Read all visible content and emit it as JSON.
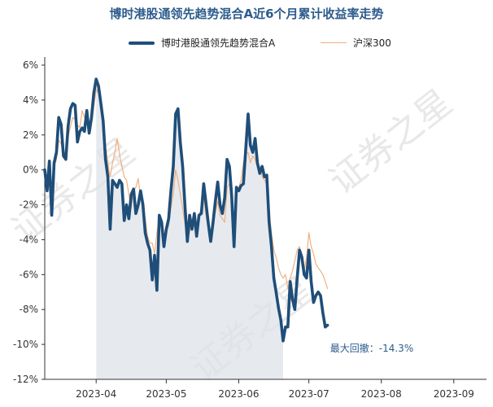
{
  "chart_data": {
    "type": "line",
    "title": "博时港股通领先趋势混合A近6个月累计收益率走势",
    "ylim": [
      -12,
      6
    ],
    "yticks": [
      "6%",
      "4%",
      "2%",
      "0%",
      "-2%",
      "-4%",
      "-6%",
      "-8%",
      "-10%",
      "-12%"
    ],
    "xlim": [
      "2023-03-10",
      "2023-09-15"
    ],
    "xticks": [
      {
        "date": "2023-04-01",
        "label": "2023-04"
      },
      {
        "date": "2023-05-01",
        "label": "2023-05"
      },
      {
        "date": "2023-06-01",
        "label": "2023-06"
      },
      {
        "date": "2023-07-01",
        "label": "2023-07"
      },
      {
        "date": "2023-08-01",
        "label": "2023-08"
      },
      {
        "date": "2023-09-01",
        "label": "2023-09"
      }
    ],
    "legend_position": "top-center",
    "grid": false,
    "watermark": "证券之星",
    "series": [
      {
        "name": "博时港股通领先趋势混合A",
        "color": "#1f4e79",
        "points": [
          [
            "2023-03-10",
            0.0
          ],
          [
            "2023-03-11",
            -1.2
          ],
          [
            "2023-03-12",
            0.5
          ],
          [
            "2023-03-13",
            -2.6
          ],
          [
            "2023-03-14",
            0.4
          ],
          [
            "2023-03-15",
            1.0
          ],
          [
            "2023-03-16",
            3.0
          ],
          [
            "2023-03-17",
            2.6
          ],
          [
            "2023-03-18",
            0.8
          ],
          [
            "2023-03-19",
            0.6
          ],
          [
            "2023-03-20",
            2.5
          ],
          [
            "2023-03-21",
            3.5
          ],
          [
            "2023-03-22",
            3.8
          ],
          [
            "2023-03-23",
            3.7
          ],
          [
            "2023-03-24",
            1.6
          ],
          [
            "2023-03-25",
            2.2
          ],
          [
            "2023-03-26",
            2.4
          ],
          [
            "2023-03-27",
            2.2
          ],
          [
            "2023-03-28",
            3.4
          ],
          [
            "2023-03-29",
            2.1
          ],
          [
            "2023-03-30",
            3.0
          ],
          [
            "2023-03-31",
            4.4
          ],
          [
            "2023-04-01",
            5.2
          ],
          [
            "2023-04-02",
            4.8
          ],
          [
            "2023-04-03",
            3.8
          ],
          [
            "2023-04-04",
            2.8
          ],
          [
            "2023-04-05",
            0.6
          ],
          [
            "2023-04-06",
            -0.4
          ],
          [
            "2023-04-07",
            -3.4
          ],
          [
            "2023-04-08",
            -0.6
          ],
          [
            "2023-04-09",
            -0.8
          ],
          [
            "2023-04-10",
            -1.0
          ],
          [
            "2023-04-11",
            -0.6
          ],
          [
            "2023-04-12",
            -0.8
          ],
          [
            "2023-04-13",
            -2.9
          ],
          [
            "2023-04-14",
            -2.0
          ],
          [
            "2023-04-15",
            -2.8
          ],
          [
            "2023-04-16",
            -1.4
          ],
          [
            "2023-04-17",
            -1.1
          ],
          [
            "2023-04-18",
            -2.5
          ],
          [
            "2023-04-19",
            -2.0
          ],
          [
            "2023-04-20",
            -1.2
          ],
          [
            "2023-04-21",
            -2.0
          ],
          [
            "2023-04-22",
            -3.6
          ],
          [
            "2023-04-23",
            -4.2
          ],
          [
            "2023-04-24",
            -4.6
          ],
          [
            "2023-04-25",
            -6.3
          ],
          [
            "2023-04-26",
            -4.9
          ],
          [
            "2023-04-27",
            -6.9
          ],
          [
            "2023-04-28",
            -2.6
          ],
          [
            "2023-04-29",
            -3.0
          ],
          [
            "2023-04-30",
            -4.4
          ],
          [
            "2023-05-01",
            -3.4
          ],
          [
            "2023-05-02",
            -2.8
          ],
          [
            "2023-05-03",
            -1.2
          ],
          [
            "2023-05-04",
            0.2
          ],
          [
            "2023-05-05",
            3.2
          ],
          [
            "2023-05-06",
            3.5
          ],
          [
            "2023-05-07",
            1.6
          ],
          [
            "2023-05-08",
            0.2
          ],
          [
            "2023-05-09",
            -2.1
          ],
          [
            "2023-05-10",
            -4.1
          ],
          [
            "2023-05-11",
            -2.6
          ],
          [
            "2023-05-12",
            -3.4
          ],
          [
            "2023-05-13",
            -2.5
          ],
          [
            "2023-05-14",
            -3.8
          ],
          [
            "2023-05-15",
            -2.6
          ],
          [
            "2023-05-16",
            -2.5
          ],
          [
            "2023-05-17",
            -0.8
          ],
          [
            "2023-05-18",
            -1.9
          ],
          [
            "2023-05-19",
            -3.1
          ],
          [
            "2023-05-20",
            -4.1
          ],
          [
            "2023-05-21",
            -3.0
          ],
          [
            "2023-05-22",
            -1.8
          ],
          [
            "2023-05-23",
            -0.7
          ],
          [
            "2023-05-24",
            -2.0
          ],
          [
            "2023-05-25",
            -2.5
          ],
          [
            "2023-05-26",
            -1.6
          ],
          [
            "2023-05-27",
            0.6
          ],
          [
            "2023-05-28",
            0.2
          ],
          [
            "2023-05-29",
            -1.5
          ],
          [
            "2023-05-30",
            -4.4
          ],
          [
            "2023-05-31",
            -1.0
          ],
          [
            "2023-06-01",
            -1.2
          ],
          [
            "2023-06-02",
            -0.9
          ],
          [
            "2023-06-03",
            -0.8
          ],
          [
            "2023-06-04",
            1.2
          ],
          [
            "2023-06-05",
            3.2
          ],
          [
            "2023-06-06",
            1.4
          ],
          [
            "2023-06-07",
            1.0
          ],
          [
            "2023-06-08",
            1.8
          ],
          [
            "2023-06-09",
            0.4
          ],
          [
            "2023-06-10",
            -0.2
          ],
          [
            "2023-06-11",
            0.2
          ],
          [
            "2023-06-12",
            -0.4
          ],
          [
            "2023-06-13",
            -0.3
          ],
          [
            "2023-06-14",
            -3.0
          ],
          [
            "2023-06-15",
            -4.4
          ],
          [
            "2023-06-16",
            -6.2
          ],
          [
            "2023-06-17",
            -7.0
          ],
          [
            "2023-06-18",
            -7.9
          ],
          [
            "2023-06-19",
            -8.6
          ],
          [
            "2023-06-20",
            -9.8
          ],
          [
            "2023-06-21",
            -9.0
          ],
          [
            "2023-06-22",
            -9.0
          ],
          [
            "2023-06-23",
            -6.4
          ],
          [
            "2023-06-24",
            -7.4
          ],
          [
            "2023-06-25",
            -8.0
          ],
          [
            "2023-06-26",
            -6.2
          ],
          [
            "2023-06-27",
            -4.6
          ],
          [
            "2023-06-28",
            -5.0
          ],
          [
            "2023-06-29",
            -6.0
          ],
          [
            "2023-06-30",
            -6.2
          ],
          [
            "2023-07-01",
            -4.6
          ],
          [
            "2023-07-02",
            -6.4
          ],
          [
            "2023-07-03",
            -7.6
          ],
          [
            "2023-07-04",
            -7.2
          ],
          [
            "2023-07-05",
            -7.0
          ],
          [
            "2023-07-06",
            -7.2
          ],
          [
            "2023-07-07",
            -8.2
          ],
          [
            "2023-07-08",
            -9.0
          ],
          [
            "2023-07-09",
            -8.9
          ]
        ]
      },
      {
        "name": "沪深300",
        "color": "#f0b07f",
        "points": [
          [
            "2023-03-10",
            0.0
          ],
          [
            "2023-03-11",
            -0.6
          ],
          [
            "2023-03-12",
            0.3
          ],
          [
            "2023-03-13",
            -1.2
          ],
          [
            "2023-03-14",
            0.2
          ],
          [
            "2023-03-15",
            0.6
          ],
          [
            "2023-03-16",
            1.7
          ],
          [
            "2023-03-17",
            1.5
          ],
          [
            "2023-03-18",
            0.9
          ],
          [
            "2023-03-19",
            0.8
          ],
          [
            "2023-03-20",
            1.9
          ],
          [
            "2023-03-21",
            2.5
          ],
          [
            "2023-03-22",
            3.0
          ],
          [
            "2023-03-23",
            2.9
          ],
          [
            "2023-03-24",
            2.6
          ],
          [
            "2023-03-25",
            2.4
          ],
          [
            "2023-03-26",
            3.4
          ],
          [
            "2023-03-27",
            3.0
          ],
          [
            "2023-03-28",
            3.2
          ],
          [
            "2023-03-29",
            2.6
          ],
          [
            "2023-03-30",
            2.8
          ],
          [
            "2023-03-31",
            3.6
          ],
          [
            "2023-04-01",
            4.6
          ],
          [
            "2023-04-02",
            4.4
          ],
          [
            "2023-04-03",
            3.6
          ],
          [
            "2023-04-04",
            3.0
          ],
          [
            "2023-04-05",
            1.4
          ],
          [
            "2023-04-06",
            0.4
          ],
          [
            "2023-04-07",
            -0.4
          ],
          [
            "2023-04-08",
            0.4
          ],
          [
            "2023-04-09",
            1.0
          ],
          [
            "2023-04-10",
            1.8
          ],
          [
            "2023-04-11",
            0.9
          ],
          [
            "2023-04-12",
            0.2
          ],
          [
            "2023-04-13",
            -0.4
          ],
          [
            "2023-04-14",
            -0.6
          ],
          [
            "2023-04-15",
            -1.4
          ],
          [
            "2023-04-16",
            -2.2
          ],
          [
            "2023-04-17",
            -1.2
          ],
          [
            "2023-04-18",
            -1.0
          ],
          [
            "2023-04-19",
            -0.5
          ],
          [
            "2023-04-20",
            -1.6
          ],
          [
            "2023-04-21",
            -1.8
          ],
          [
            "2023-04-22",
            -2.8
          ],
          [
            "2023-04-23",
            -3.8
          ],
          [
            "2023-04-24",
            -4.2
          ],
          [
            "2023-04-25",
            -4.2
          ],
          [
            "2023-04-26",
            -4.8
          ],
          [
            "2023-04-27",
            -3.6
          ],
          [
            "2023-04-28",
            -2.6
          ],
          [
            "2023-04-29",
            -3.4
          ],
          [
            "2023-04-30",
            -4.2
          ],
          [
            "2023-05-01",
            -3.6
          ],
          [
            "2023-05-02",
            -3.2
          ],
          [
            "2023-05-03",
            -2.2
          ],
          [
            "2023-05-04",
            -1.4
          ],
          [
            "2023-05-05",
            0.0
          ],
          [
            "2023-05-06",
            -0.6
          ],
          [
            "2023-05-07",
            -1.4
          ],
          [
            "2023-05-08",
            -2.2
          ],
          [
            "2023-05-09",
            -3.1
          ],
          [
            "2023-05-10",
            -3.5
          ],
          [
            "2023-05-11",
            -3.6
          ],
          [
            "2023-05-12",
            -3.0
          ],
          [
            "2023-05-13",
            -2.8
          ],
          [
            "2023-05-14",
            -3.2
          ],
          [
            "2023-05-15",
            -2.6
          ],
          [
            "2023-05-16",
            -2.2
          ],
          [
            "2023-05-17",
            -1.6
          ],
          [
            "2023-05-18",
            -2.6
          ],
          [
            "2023-05-19",
            -3.4
          ],
          [
            "2023-05-20",
            -3.6
          ],
          [
            "2023-05-21",
            -3.0
          ],
          [
            "2023-05-22",
            -2.4
          ],
          [
            "2023-05-23",
            -1.8
          ],
          [
            "2023-05-24",
            -2.6
          ],
          [
            "2023-05-25",
            -2.8
          ],
          [
            "2023-05-26",
            -3.0
          ],
          [
            "2023-05-27",
            -1.0
          ],
          [
            "2023-05-28",
            -0.8
          ],
          [
            "2023-05-29",
            -1.8
          ],
          [
            "2023-05-30",
            -3.6
          ],
          [
            "2023-05-31",
            -1.4
          ],
          [
            "2023-06-01",
            -1.0
          ],
          [
            "2023-06-02",
            -0.6
          ],
          [
            "2023-06-03",
            0.4
          ],
          [
            "2023-06-04",
            0.9
          ],
          [
            "2023-06-05",
            1.0
          ],
          [
            "2023-06-06",
            0.4
          ],
          [
            "2023-06-07",
            0.8
          ],
          [
            "2023-06-08",
            0.6
          ],
          [
            "2023-06-09",
            0.2
          ],
          [
            "2023-06-10",
            0.2
          ],
          [
            "2023-06-11",
            -0.4
          ],
          [
            "2023-06-12",
            -0.6
          ],
          [
            "2023-06-13",
            -0.8
          ],
          [
            "2023-06-14",
            -2.4
          ],
          [
            "2023-06-15",
            -3.6
          ],
          [
            "2023-06-16",
            -4.6
          ],
          [
            "2023-06-17",
            -5.0
          ],
          [
            "2023-06-18",
            -5.6
          ],
          [
            "2023-06-19",
            -6.0
          ],
          [
            "2023-06-20",
            -6.2
          ],
          [
            "2023-06-21",
            -6.0
          ],
          [
            "2023-06-22",
            -6.8
          ],
          [
            "2023-06-23",
            -6.2
          ],
          [
            "2023-06-24",
            -5.8
          ],
          [
            "2023-06-25",
            -5.2
          ],
          [
            "2023-06-26",
            -4.6
          ],
          [
            "2023-06-27",
            -4.4
          ],
          [
            "2023-06-28",
            -5.2
          ],
          [
            "2023-06-29",
            -5.8
          ],
          [
            "2023-06-30",
            -5.0
          ],
          [
            "2023-07-01",
            -3.6
          ],
          [
            "2023-07-02",
            -4.4
          ],
          [
            "2023-07-03",
            -4.8
          ],
          [
            "2023-07-04",
            -5.4
          ],
          [
            "2023-07-05",
            -5.6
          ],
          [
            "2023-07-06",
            -5.8
          ],
          [
            "2023-07-07",
            -6.0
          ],
          [
            "2023-07-08",
            -6.4
          ],
          [
            "2023-07-09",
            -6.8
          ]
        ]
      }
    ],
    "drawdown": {
      "start": "2023-04-01",
      "end": "2023-06-20"
    },
    "annotation": "最大回撤：-14.3%"
  }
}
